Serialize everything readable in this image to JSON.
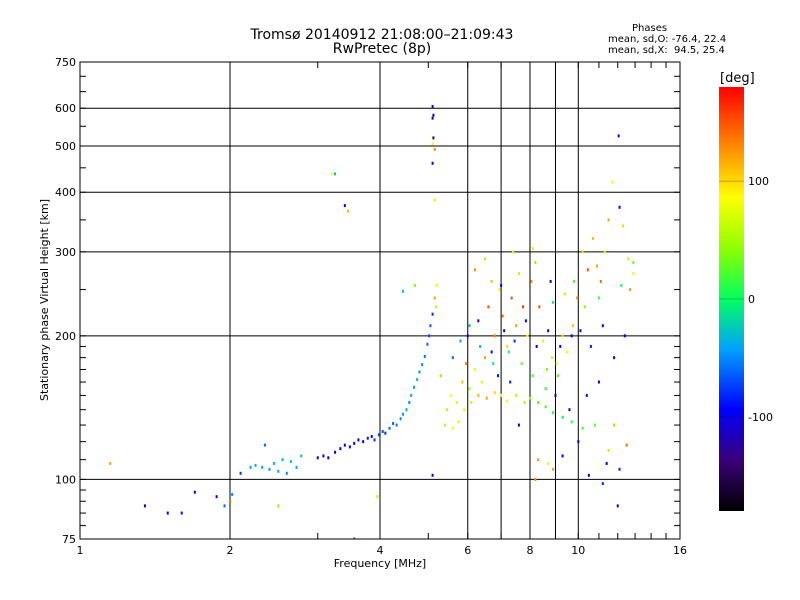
{
  "chart_data": {
    "type": "scatter",
    "title": "Tromsø 20140912 21:08:00–21:09:43",
    "subtitle": "RwPretec (8p)",
    "xlabel": "Frequency [MHz]",
    "ylabel": "Stationary phase Virtual Height [km]",
    "xscale": "log",
    "yscale": "log",
    "xlim": [
      1,
      16
    ],
    "ylim": [
      75,
      750
    ],
    "xticks": [
      1,
      2,
      4,
      6,
      8,
      10,
      16
    ],
    "xtick_labels": [
      "1",
      "2",
      "4",
      "6",
      "8",
      "10",
      "16"
    ],
    "xgrid": [
      2,
      4,
      6,
      8,
      10
    ],
    "xminor": [
      7,
      9
    ],
    "yticks": [
      75,
      100,
      200,
      300,
      400,
      500,
      600,
      750
    ],
    "ytick_labels": [
      "75",
      "100",
      "200",
      "300",
      "400",
      "500",
      "600",
      "750"
    ],
    "ygrid": [
      100,
      200,
      300,
      400,
      500,
      600
    ],
    "annotation": {
      "heading": "Phases",
      "line1": "mean, sd,O: -76.4, 22.4",
      "line2": "mean, sd,X:  94.5, 25.4"
    },
    "colorbar": {
      "label": "[deg]",
      "range": [
        -180,
        180
      ],
      "ticks": [
        100,
        0,
        -100
      ],
      "tick_labels": [
        "100",
        "0",
        "-100"
      ]
    },
    "series": [
      {
        "name": "echoes",
        "points": [
          [
            1.15,
            108,
            120
          ],
          [
            1.35,
            88,
            -110
          ],
          [
            1.5,
            85,
            -100
          ],
          [
            1.6,
            85,
            -90
          ],
          [
            1.7,
            94,
            -120
          ],
          [
            1.88,
            92,
            -110
          ],
          [
            1.95,
            88,
            -60
          ],
          [
            2.0,
            90,
            140
          ],
          [
            2.02,
            93,
            -50
          ],
          [
            2.1,
            103,
            -80
          ],
          [
            2.2,
            106,
            -40
          ],
          [
            2.25,
            107,
            -30
          ],
          [
            2.32,
            106,
            -35
          ],
          [
            2.4,
            105,
            -45
          ],
          [
            2.45,
            108,
            -30
          ],
          [
            2.5,
            104,
            -40
          ],
          [
            2.55,
            110,
            -35
          ],
          [
            2.6,
            103,
            -50
          ],
          [
            2.65,
            109,
            -20
          ],
          [
            2.72,
            106,
            -40
          ],
          [
            2.5,
            88,
            110
          ],
          [
            2.35,
            118,
            -60
          ],
          [
            2.78,
            112,
            -30
          ],
          [
            3.0,
            111,
            -110
          ],
          [
            3.08,
            112,
            -115
          ],
          [
            3.15,
            111,
            -100
          ],
          [
            3.25,
            114,
            -110
          ],
          [
            3.33,
            116,
            -95
          ],
          [
            3.4,
            118,
            -105
          ],
          [
            3.48,
            117,
            -90
          ],
          [
            3.55,
            119,
            -100
          ],
          [
            3.62,
            121,
            -95
          ],
          [
            3.7,
            120,
            -100
          ],
          [
            3.78,
            122,
            -85
          ],
          [
            3.85,
            123,
            -90
          ],
          [
            3.9,
            121,
            -80
          ],
          [
            3.98,
            124,
            -75
          ],
          [
            4.05,
            126,
            -70
          ],
          [
            4.1,
            125,
            -80
          ],
          [
            4.18,
            128,
            -60
          ],
          [
            4.25,
            131,
            -65
          ],
          [
            4.32,
            130,
            -55
          ],
          [
            4.4,
            134,
            -50
          ],
          [
            4.45,
            137,
            -45
          ],
          [
            4.52,
            140,
            -40
          ],
          [
            4.58,
            145,
            -50
          ],
          [
            4.62,
            150,
            -35
          ],
          [
            4.68,
            156,
            -40
          ],
          [
            4.75,
            162,
            -30
          ],
          [
            4.8,
            168,
            -45
          ],
          [
            4.86,
            174,
            -50
          ],
          [
            4.92,
            181,
            -55
          ],
          [
            4.98,
            192,
            -60
          ],
          [
            5.02,
            200,
            -70
          ],
          [
            5.05,
            210,
            -65
          ],
          [
            5.1,
            222,
            -80
          ],
          [
            5.15,
            240,
            120
          ],
          [
            5.2,
            255,
            80
          ],
          [
            5.18,
            230,
            60
          ],
          [
            3.2,
            437,
            90
          ],
          [
            3.25,
            437,
            -30
          ],
          [
            3.4,
            375,
            -110
          ],
          [
            3.45,
            365,
            110
          ],
          [
            4.45,
            248,
            -30
          ],
          [
            4.7,
            255,
            40
          ],
          [
            3.95,
            92,
            60
          ],
          [
            3.55,
            75,
            -60
          ],
          [
            5.1,
            102,
            -110
          ],
          [
            5.1,
            605,
            -100
          ],
          [
            5.12,
            580,
            -120
          ],
          [
            5.1,
            572,
            -110
          ],
          [
            5.12,
            520,
            -140
          ],
          [
            5.1,
            505,
            80
          ],
          [
            5.15,
            492,
            130
          ],
          [
            5.1,
            460,
            -100
          ],
          [
            5.15,
            385,
            70
          ],
          [
            5.3,
            165,
            40
          ],
          [
            5.45,
            140,
            60
          ],
          [
            5.55,
            150,
            80
          ],
          [
            5.7,
            145,
            70
          ],
          [
            5.85,
            160,
            110
          ],
          [
            5.95,
            175,
            130
          ],
          [
            6.05,
            155,
            60
          ],
          [
            6.2,
            170,
            90
          ],
          [
            6.4,
            160,
            70
          ],
          [
            6.5,
            180,
            120
          ],
          [
            6.6,
            230,
            150
          ],
          [
            6.7,
            260,
            110
          ],
          [
            6.8,
            200,
            130
          ],
          [
            6.95,
            250,
            90
          ],
          [
            7.05,
            220,
            140
          ],
          [
            7.2,
            190,
            100
          ],
          [
            7.35,
            240,
            150
          ],
          [
            7.5,
            210,
            120
          ],
          [
            7.6,
            270,
            100
          ],
          [
            7.75,
            230,
            160
          ],
          [
            7.9,
            200,
            90
          ],
          [
            8.05,
            260,
            130
          ],
          [
            8.2,
            285,
            110
          ],
          [
            8.35,
            230,
            150
          ],
          [
            8.5,
            195,
            70
          ],
          [
            8.65,
            170,
            40
          ],
          [
            8.85,
            180,
            60
          ],
          [
            9.05,
            175,
            80
          ],
          [
            9.3,
            200,
            100
          ],
          [
            9.5,
            185,
            90
          ],
          [
            9.75,
            210,
            110
          ],
          [
            9.95,
            240,
            130
          ],
          [
            10.2,
            300,
            100
          ],
          [
            10.45,
            275,
            150
          ],
          [
            10.7,
            320,
            110
          ],
          [
            10.9,
            280,
            120
          ],
          [
            11.1,
            260,
            140
          ],
          [
            11.3,
            300,
            90
          ],
          [
            11.5,
            350,
            120
          ],
          [
            11.7,
            420,
            90
          ],
          [
            12.05,
            525,
            -110
          ],
          [
            12.1,
            372,
            -100
          ],
          [
            12.3,
            340,
            100
          ],
          [
            12.6,
            290,
            60
          ],
          [
            12.9,
            285,
            30
          ],
          [
            6.0,
            200,
            -100
          ],
          [
            6.3,
            215,
            -110
          ],
          [
            6.7,
            185,
            -90
          ],
          [
            7.1,
            205,
            -120
          ],
          [
            7.45,
            195,
            -80
          ],
          [
            7.85,
            215,
            -100
          ],
          [
            8.25,
            190,
            -110
          ],
          [
            8.7,
            205,
            -90
          ],
          [
            9.2,
            190,
            -100
          ],
          [
            9.7,
            200,
            -95
          ],
          [
            10.1,
            205,
            -110
          ],
          [
            10.6,
            190,
            -85
          ],
          [
            11.2,
            210,
            -100
          ],
          [
            12.0,
            88,
            -110
          ],
          [
            12.1,
            105,
            -80
          ],
          [
            11.4,
            108,
            -100
          ],
          [
            10.0,
            120,
            -100
          ],
          [
            8.3,
            110,
            120
          ],
          [
            8.7,
            108,
            90
          ],
          [
            7.6,
            130,
            -100
          ],
          [
            6.9,
            165,
            -90
          ],
          [
            7.3,
            160,
            -80
          ],
          [
            9.0,
            150,
            -110
          ],
          [
            9.6,
            140,
            -100
          ],
          [
            10.4,
            150,
            -90
          ],
          [
            11.0,
            160,
            -110
          ],
          [
            11.8,
            180,
            -95
          ],
          [
            12.4,
            200,
            -100
          ],
          [
            7.0,
            255,
            -100
          ],
          [
            8.8,
            260,
            -110
          ],
          [
            9.4,
            245,
            60
          ],
          [
            10.3,
            230,
            40
          ],
          [
            11.0,
            240,
            20
          ],
          [
            12.2,
            255,
            10
          ],
          [
            6.5,
            290,
            100
          ],
          [
            7.4,
            300,
            90
          ],
          [
            8.1,
            305,
            70
          ],
          [
            6.2,
            275,
            130
          ],
          [
            8.9,
            235,
            0
          ],
          [
            9.8,
            260,
            20
          ],
          [
            5.6,
            180,
            -60
          ],
          [
            5.8,
            195,
            -40
          ],
          [
            6.05,
            210,
            -30
          ],
          [
            6.35,
            190,
            -20
          ],
          [
            6.75,
            175,
            -10
          ],
          [
            7.25,
            185,
            0
          ],
          [
            7.7,
            175,
            30
          ],
          [
            8.1,
            165,
            20
          ],
          [
            8.6,
            155,
            10
          ],
          [
            9.1,
            165,
            30
          ],
          [
            5.4,
            130,
            60
          ],
          [
            5.6,
            128,
            80
          ],
          [
            5.75,
            132,
            70
          ],
          [
            5.9,
            140,
            90
          ],
          [
            6.1,
            145,
            100
          ],
          [
            6.3,
            150,
            110
          ],
          [
            6.55,
            148,
            120
          ],
          [
            6.8,
            152,
            100
          ],
          [
            7.0,
            150,
            90
          ],
          [
            7.2,
            146,
            80
          ],
          [
            7.5,
            150,
            60
          ],
          [
            7.8,
            145,
            50
          ],
          [
            8.0,
            148,
            40
          ],
          [
            8.3,
            145,
            30
          ],
          [
            8.6,
            142,
            20
          ],
          [
            8.9,
            138,
            10
          ],
          [
            9.3,
            135,
            0
          ],
          [
            9.7,
            132,
            10
          ],
          [
            10.2,
            128,
            20
          ],
          [
            10.8,
            130,
            30
          ],
          [
            11.5,
            115,
            100
          ],
          [
            11.8,
            130,
            110
          ],
          [
            8.2,
            100,
            130
          ],
          [
            8.9,
            105,
            120
          ],
          [
            9.3,
            112,
            -100
          ],
          [
            10.5,
            102,
            -110
          ],
          [
            11.2,
            98,
            -80
          ],
          [
            12.5,
            118,
            140
          ],
          [
            12.7,
            250,
            120
          ],
          [
            12.9,
            270,
            90
          ]
        ]
      }
    ]
  }
}
